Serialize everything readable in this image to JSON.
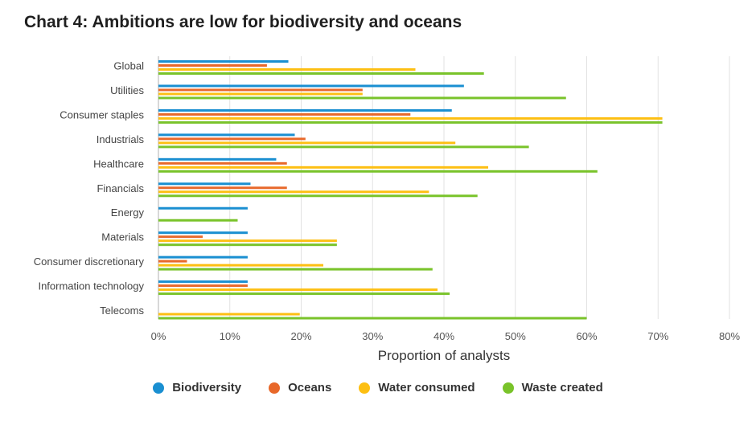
{
  "title": "Chart 4: Ambitions are low for biodiversity and oceans",
  "chart_data": {
    "type": "bar",
    "orientation": "horizontal",
    "title": "Chart 4: Ambitions are low for biodiversity and oceans",
    "xlabel": "Proportion of analysts",
    "ylabel": "",
    "xlim": [
      0,
      80
    ],
    "x_ticks": [
      "0%",
      "10%",
      "20%",
      "30%",
      "40%",
      "50%",
      "60%",
      "70%",
      "80%"
    ],
    "grid": "vertical",
    "legend_position": "bottom",
    "categories": [
      "Global",
      "Utilities",
      "Consumer staples",
      "Industrials",
      "Healthcare",
      "Financials",
      "Energy",
      "Materials",
      "Consumer discretionary",
      "Information technology",
      "Telecoms"
    ],
    "series": [
      {
        "name": "Biodiversity",
        "color": "#1A8FD1",
        "values": [
          18.2,
          42.8,
          41.1,
          19.1,
          16.5,
          12.9,
          12.5,
          12.5,
          12.5,
          12.5,
          0
        ]
      },
      {
        "name": "Oceans",
        "color": "#E8682A",
        "values": [
          15.2,
          28.6,
          35.3,
          20.6,
          18.0,
          18.0,
          0,
          6.2,
          4.0,
          12.5,
          0
        ]
      },
      {
        "name": "Water consumed",
        "color": "#FDBF12",
        "values": [
          36.0,
          28.6,
          70.6,
          41.6,
          46.2,
          37.9,
          0,
          25.0,
          23.1,
          39.1,
          19.8
        ]
      },
      {
        "name": "Waste created",
        "color": "#79C32A",
        "values": [
          45.6,
          57.1,
          70.6,
          51.9,
          61.5,
          44.7,
          11.1,
          25.0,
          38.4,
          40.8,
          60.0
        ]
      }
    ]
  }
}
